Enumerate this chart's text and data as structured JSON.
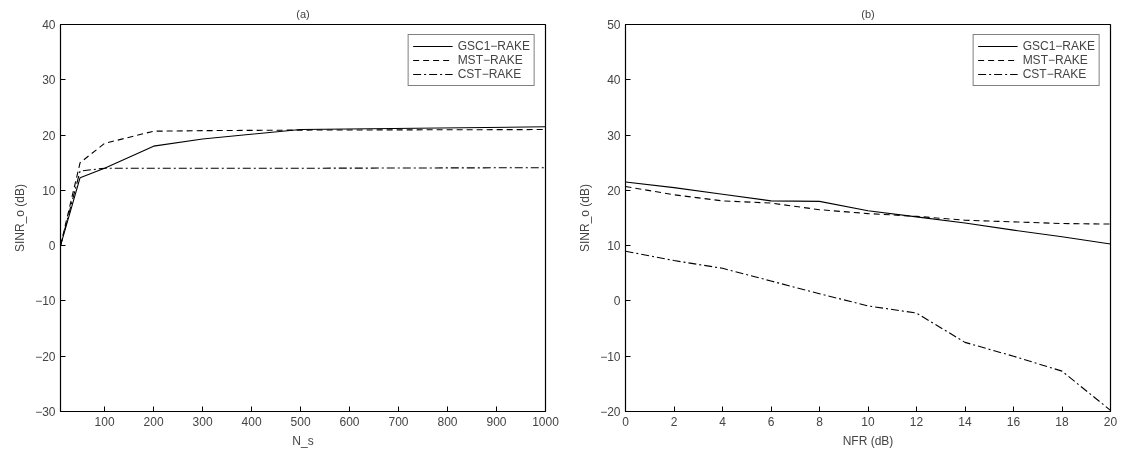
{
  "chart_data": [
    {
      "type": "line",
      "title": "(a)",
      "xlabel": "N_s",
      "ylabel": "SINR_o (dB)",
      "x": [
        10,
        50,
        100,
        200,
        300,
        500,
        1000
      ],
      "xlim": [
        10,
        1000
      ],
      "xticks": [
        100,
        200,
        300,
        400,
        500,
        600,
        700,
        800,
        900,
        1000
      ],
      "ylim": [
        -30,
        40
      ],
      "yticks": [
        -30,
        -20,
        -10,
        0,
        10,
        20,
        30,
        40
      ],
      "grid": false,
      "legend": "top right",
      "series": [
        {
          "name": "GSC1−RAKE",
          "color": "#000000",
          "line_style": "solid",
          "values": [
            0,
            12.3,
            14,
            18,
            19.3,
            21,
            21.5
          ]
        },
        {
          "name": "MST−RAKE",
          "color": "#000000",
          "line_style": "dashed",
          "values": [
            0,
            15,
            18.5,
            20.7,
            20.8,
            20.9,
            21.0
          ]
        },
        {
          "name": "CST−RAKE",
          "color": "#000000",
          "line_style": "dashdot",
          "values": [
            0,
            13.5,
            14,
            14,
            14,
            14,
            14.1
          ]
        }
      ]
    },
    {
      "type": "line",
      "title": "(b)",
      "xlabel": "NFR (dB)",
      "ylabel": "SINR_o (dB)",
      "x": [
        0,
        2,
        4,
        6,
        8,
        10,
        12,
        14,
        16,
        18,
        20
      ],
      "xlim": [
        0,
        20
      ],
      "xticks": [
        0,
        2,
        4,
        6,
        8,
        10,
        12,
        14,
        16,
        18,
        20
      ],
      "ylim": [
        -20,
        50
      ],
      "yticks": [
        -20,
        -10,
        0,
        10,
        20,
        30,
        40,
        50
      ],
      "grid": false,
      "legend": "top right",
      "series": [
        {
          "name": "GSC1−RAKE",
          "color": "#000000",
          "line_style": "solid",
          "values": [
            21.5,
            20.5,
            19.3,
            18.1,
            18,
            16.3,
            15.2,
            14.1,
            12.8,
            11.6,
            10.3
          ]
        },
        {
          "name": "MST−RAKE",
          "color": "#000000",
          "line_style": "dashed",
          "values": [
            20.7,
            19.2,
            18.1,
            17.7,
            16.5,
            15.8,
            15.3,
            14.6,
            14.3,
            14.0,
            13.9
          ]
        },
        {
          "name": "CST−RAKE",
          "color": "#000000",
          "line_style": "dashdot",
          "values": [
            9,
            7.3,
            5.9,
            3.6,
            1.3,
            -0.9,
            -2.2,
            -7.5,
            -10,
            -12.7,
            -19.8
          ]
        }
      ]
    }
  ]
}
